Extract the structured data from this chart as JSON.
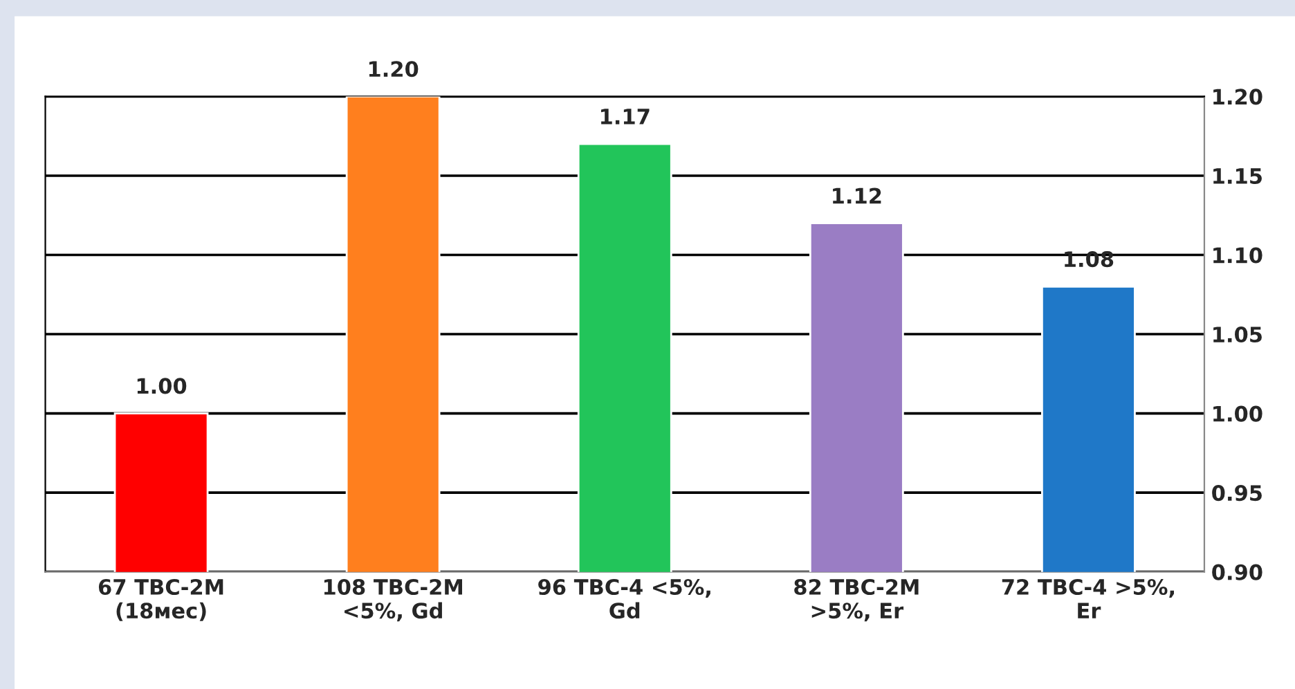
{
  "chart_data": {
    "type": "bar",
    "categories": [
      "67 ТВС-2М\n(18мес)",
      "108 ТВС-2М\n<5%, Gd",
      "96 ТВС-4 <5%,\nGd",
      "82 ТВС-2М\n>5%, Er",
      "72 ТВС-4 >5%,\nEr"
    ],
    "values": [
      1.0,
      1.2,
      1.17,
      1.12,
      1.08
    ],
    "colors": [
      "#ff0000",
      "#ff7f1e",
      "#22c55a",
      "#9a7dc4",
      "#1f78c8"
    ],
    "value_labels": [
      "1.00",
      "1.20",
      "1.17",
      "1.12",
      "1.08"
    ],
    "ylim": [
      0.9,
      1.2
    ],
    "yticks": [
      {
        "value": 0.9,
        "label": "0.90"
      },
      {
        "value": 0.95,
        "label": "0.95"
      },
      {
        "value": 1.0,
        "label": "1.00"
      },
      {
        "value": 1.05,
        "label": "1.05"
      },
      {
        "value": 1.1,
        "label": "1.10"
      },
      {
        "value": 1.15,
        "label": "1.15"
      },
      {
        "value": 1.2,
        "label": "1.20"
      }
    ],
    "grid": "y",
    "legend": false
  }
}
